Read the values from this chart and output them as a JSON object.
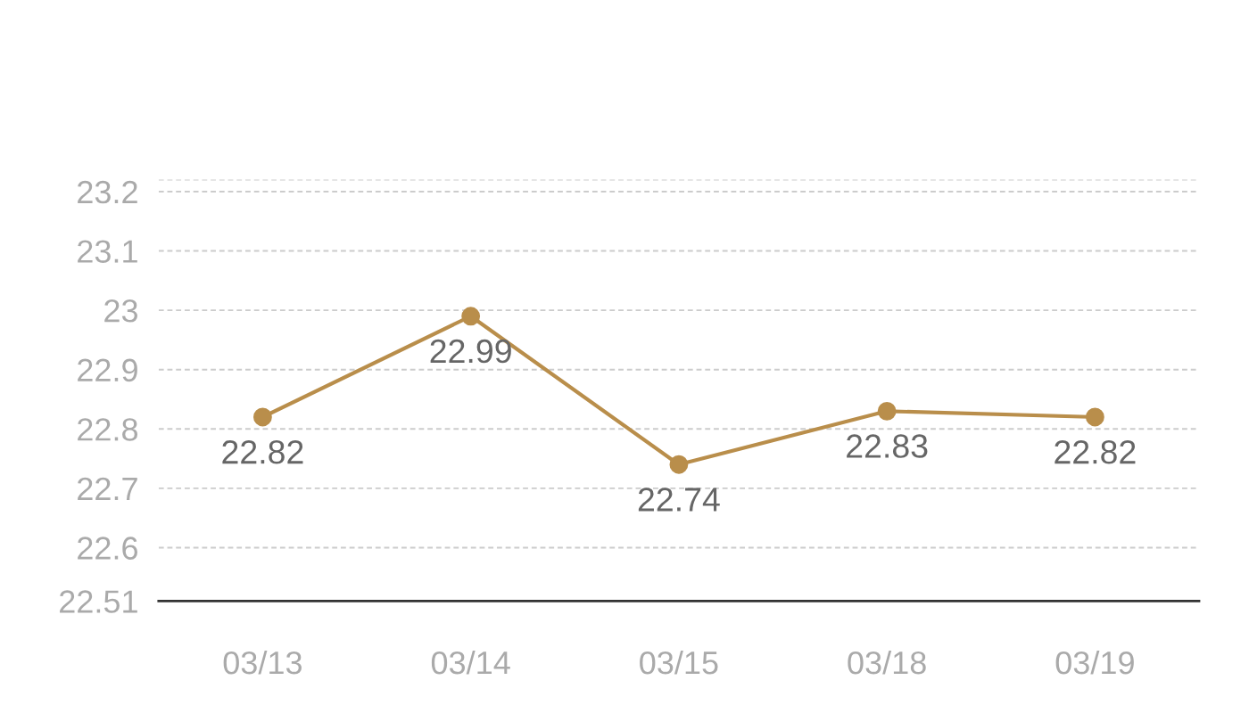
{
  "chart_data": {
    "type": "line",
    "categories": [
      "03/13",
      "03/14",
      "03/15",
      "03/18",
      "03/19"
    ],
    "series": [
      {
        "color": "#b98e4b",
        "values": [
          22.82,
          22.99,
          22.74,
          22.83,
          22.82
        ]
      }
    ],
    "ylim": [
      22.51,
      23.22
    ],
    "yticks": [
      22.51,
      22.6,
      22.7,
      22.8,
      22.9,
      23,
      23.1,
      23.2,
      {
        "value": 23.22,
        "label": null
      }
    ],
    "grid": "y",
    "marker": "circle",
    "line_style": "solid",
    "data_labels": true
  }
}
